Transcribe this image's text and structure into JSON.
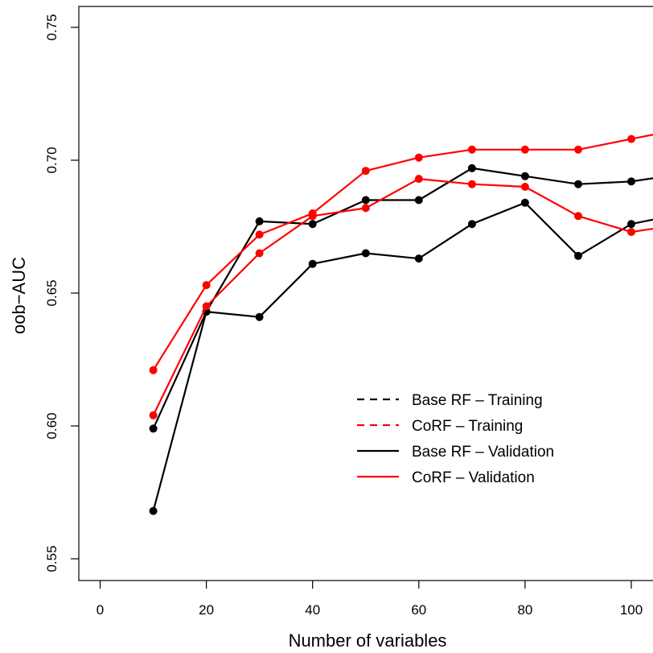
{
  "chart_data": {
    "type": "line",
    "title": "",
    "xlabel": "Number of variables",
    "ylabel": "oob−AUC",
    "xlim": [
      -4,
      105
    ],
    "ylim": [
      0.542,
      0.758
    ],
    "x_ticks": [
      0,
      20,
      40,
      60,
      80,
      100
    ],
    "y_ticks": [
      0.55,
      0.6,
      0.65,
      0.7,
      0.75
    ],
    "x_tick_labels": [
      "0",
      "20",
      "40",
      "60",
      "80",
      "100"
    ],
    "y_tick_labels": [
      "0.55",
      "0.60",
      "0.65",
      "0.70",
      "0.75"
    ],
    "grid": false,
    "legend_position": "center-right",
    "legend": [
      {
        "label": "Base RF – Training",
        "color": "#000000",
        "dash": "dashed"
      },
      {
        "label": "CoRF – Training",
        "color": "#ff0000",
        "dash": "dashed"
      },
      {
        "label": "Base RF – Validation",
        "color": "#000000",
        "dash": "solid"
      },
      {
        "label": "CoRF – Validation",
        "color": "#ff0000",
        "dash": "solid"
      }
    ],
    "series": [
      {
        "color": "#000000",
        "x": [
          10,
          20,
          30,
          40,
          50,
          60,
          70,
          80,
          90,
          100,
          110
        ],
        "y": [
          0.599,
          0.643,
          0.677,
          0.676,
          0.685,
          0.685,
          0.697,
          0.694,
          0.691,
          0.692,
          0.695
        ]
      },
      {
        "color": "#000000",
        "x": [
          10,
          20,
          30,
          40,
          50,
          60,
          70,
          80,
          90,
          100,
          110
        ],
        "y": [
          0.568,
          0.643,
          0.641,
          0.661,
          0.665,
          0.663,
          0.676,
          0.684,
          0.664,
          0.676,
          0.68
        ]
      },
      {
        "color": "#ff0000",
        "x": [
          10,
          20,
          30,
          40,
          50,
          60,
          70,
          80,
          90,
          100,
          110
        ],
        "y": [
          0.621,
          0.653,
          0.672,
          0.68,
          0.696,
          0.701,
          0.704,
          0.704,
          0.704,
          0.708,
          0.712
        ]
      },
      {
        "color": "#ff0000",
        "x": [
          10,
          20,
          30,
          40,
          50,
          60,
          70,
          80,
          90,
          100,
          110
        ],
        "y": [
          0.604,
          0.645,
          0.665,
          0.679,
          0.682,
          0.693,
          0.691,
          0.69,
          0.679,
          0.673,
          0.676
        ]
      }
    ]
  }
}
